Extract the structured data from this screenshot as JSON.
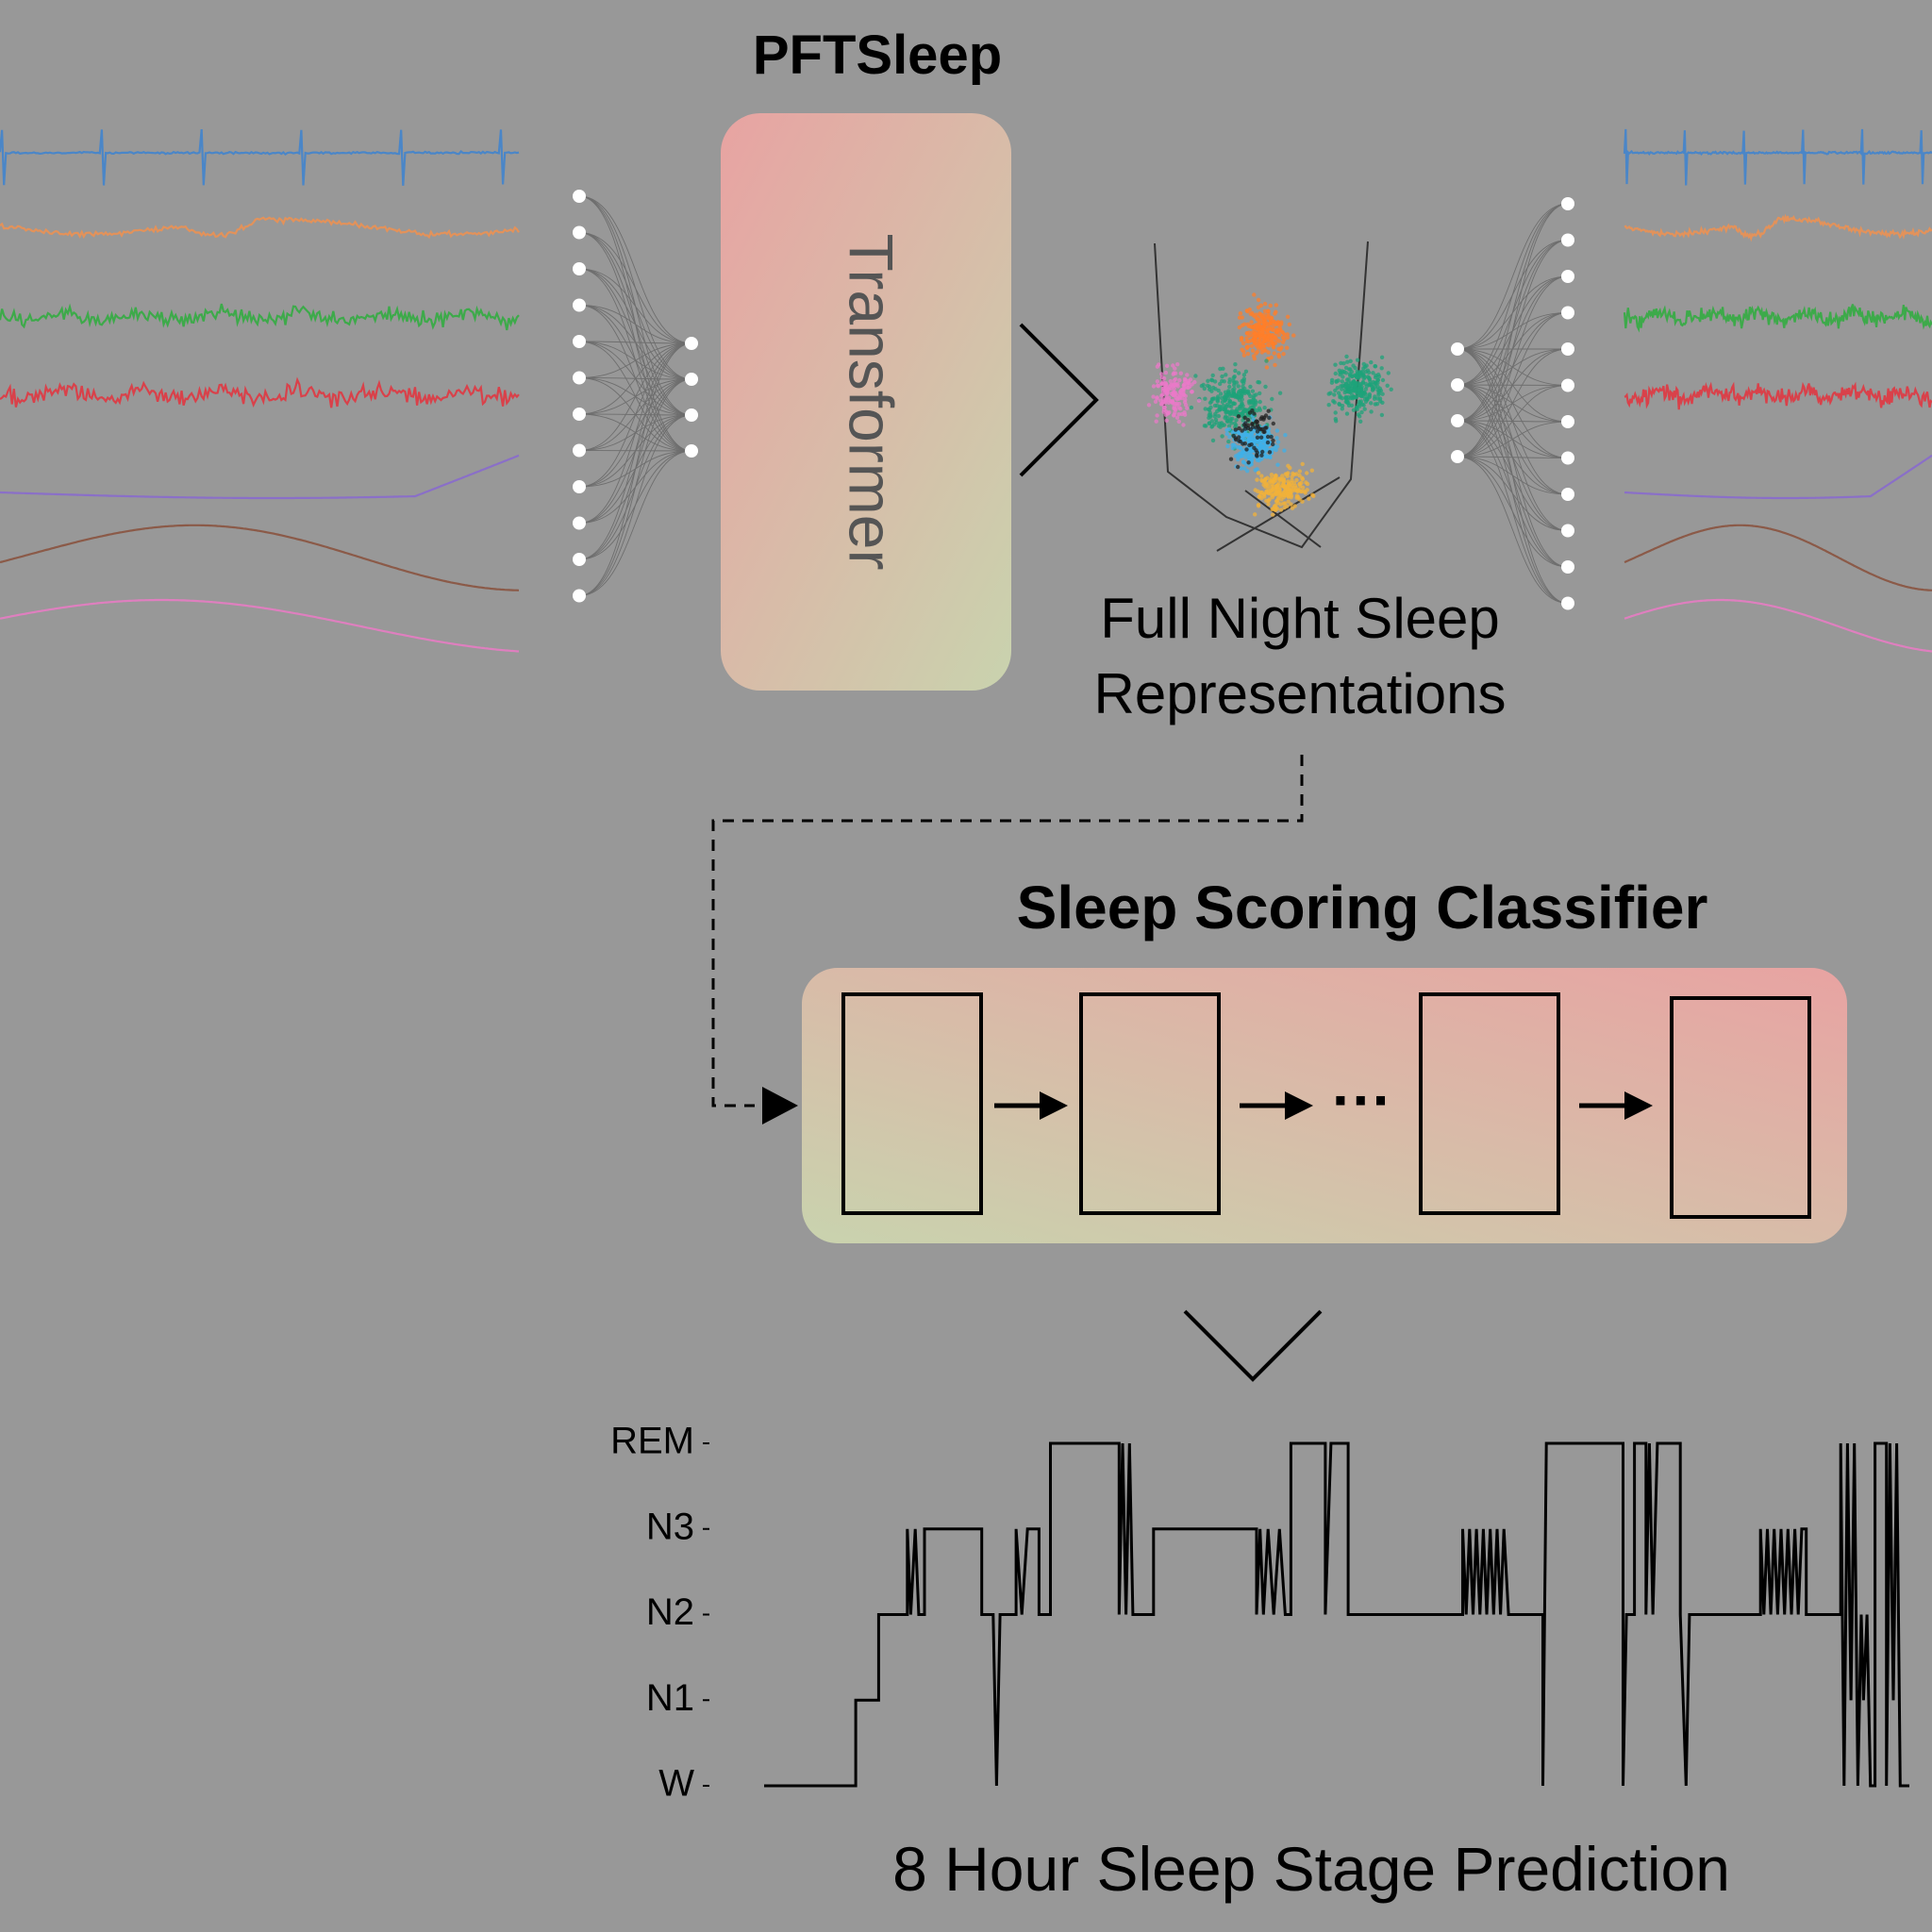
{
  "colors": {
    "background": "#989898",
    "gradient_red": "#e8a3a2",
    "gradient_green": "#c9d3ae",
    "signal_blue": "#4a86c8",
    "signal_orange": "#e3925a",
    "signal_green": "#3daa4a",
    "signal_red": "#d9414a",
    "signal_purple": "#8a6fc8",
    "signal_brown": "#8b5a48",
    "signal_pink": "#df7fbf",
    "cluster_orange": "#ff7f2a",
    "cluster_teal": "#1ea37a",
    "cluster_blue": "#3fb0e8",
    "cluster_yellow": "#f1b23a",
    "cluster_pink": "#e97ac8"
  },
  "encoder": {
    "title": "PFTSleep",
    "block_label": "Transformer"
  },
  "representations": {
    "caption_line1": "Full Night Sleep",
    "caption_line2": "Representations"
  },
  "classifier": {
    "title": "Sleep Scoring Classifier",
    "ellipsis": "···"
  },
  "prediction": {
    "caption": "8 Hour Sleep Stage Prediction"
  },
  "chart_data": {
    "type": "line",
    "categories": [
      "W",
      "N1",
      "N2",
      "N3",
      "REM"
    ],
    "xlim": [
      0,
      100
    ],
    "ylim": [
      0,
      4
    ],
    "hypnogram": [
      [
        0,
        0
      ],
      [
        8,
        0
      ],
      [
        8,
        1
      ],
      [
        10,
        1
      ],
      [
        10,
        2
      ],
      [
        12.5,
        2
      ],
      [
        12.5,
        3
      ],
      [
        12.8,
        2
      ],
      [
        13.2,
        3
      ],
      [
        13.5,
        2
      ],
      [
        14,
        2
      ],
      [
        14,
        3
      ],
      [
        19,
        3
      ],
      [
        19,
        2
      ],
      [
        20,
        2
      ],
      [
        20.3,
        0
      ],
      [
        20.6,
        2
      ],
      [
        22,
        2
      ],
      [
        22,
        3
      ],
      [
        22.5,
        2
      ],
      [
        23,
        3
      ],
      [
        24,
        3
      ],
      [
        24,
        2
      ],
      [
        25,
        2
      ],
      [
        25,
        4
      ],
      [
        31,
        4
      ],
      [
        31,
        2
      ],
      [
        31.3,
        4
      ],
      [
        31.6,
        2
      ],
      [
        31.9,
        4
      ],
      [
        32.2,
        2
      ],
      [
        34,
        2
      ],
      [
        34,
        3
      ],
      [
        43,
        3
      ],
      [
        43,
        2
      ],
      [
        43.3,
        3
      ],
      [
        43.6,
        2
      ],
      [
        44,
        3
      ],
      [
        44.5,
        2
      ],
      [
        45,
        3
      ],
      [
        45.5,
        2
      ],
      [
        46,
        2
      ],
      [
        46,
        4
      ],
      [
        49,
        4
      ],
      [
        49,
        2
      ],
      [
        49.5,
        4
      ],
      [
        51,
        4
      ],
      [
        51,
        2
      ],
      [
        61,
        2
      ],
      [
        61,
        3
      ],
      [
        61.3,
        2
      ],
      [
        61.6,
        3
      ],
      [
        61.9,
        2
      ],
      [
        62.2,
        3
      ],
      [
        62.5,
        2
      ],
      [
        62.8,
        3
      ],
      [
        63.1,
        2
      ],
      [
        63.4,
        3
      ],
      [
        63.7,
        2
      ],
      [
        64,
        3
      ],
      [
        64.3,
        2
      ],
      [
        64.6,
        3
      ],
      [
        65,
        2
      ],
      [
        68,
        2
      ],
      [
        68,
        0
      ],
      [
        68.3,
        4
      ],
      [
        75,
        4
      ],
      [
        75,
        0
      ],
      [
        75.3,
        2
      ],
      [
        76,
        2
      ],
      [
        76,
        4
      ],
      [
        77,
        4
      ],
      [
        77,
        2
      ],
      [
        77.3,
        4
      ],
      [
        77.6,
        2
      ],
      [
        78,
        4
      ],
      [
        80,
        4
      ],
      [
        80,
        2
      ],
      [
        80.5,
        0
      ],
      [
        80.8,
        2
      ],
      [
        87,
        2
      ],
      [
        87,
        3
      ],
      [
        87.3,
        2
      ],
      [
        87.6,
        3
      ],
      [
        87.9,
        2
      ],
      [
        88.2,
        3
      ],
      [
        88.5,
        2
      ],
      [
        88.8,
        3
      ],
      [
        89.1,
        2
      ],
      [
        89.4,
        3
      ],
      [
        89.7,
        2
      ],
      [
        90,
        3
      ],
      [
        90.3,
        2
      ],
      [
        90.6,
        3
      ],
      [
        91,
        3
      ],
      [
        91,
        2
      ],
      [
        94,
        2
      ],
      [
        94,
        4
      ],
      [
        94.3,
        0
      ],
      [
        94.6,
        4
      ],
      [
        94.9,
        1
      ],
      [
        95.2,
        4
      ],
      [
        95.5,
        0
      ],
      [
        95.8,
        2
      ],
      [
        96,
        1
      ],
      [
        96.3,
        2
      ],
      [
        96.6,
        0
      ],
      [
        97,
        0
      ],
      [
        97,
        4
      ],
      [
        98,
        4
      ],
      [
        98,
        0
      ],
      [
        98.3,
        4
      ],
      [
        98.6,
        1
      ],
      [
        98.9,
        4
      ],
      [
        99.2,
        0
      ],
      [
        100,
        0
      ]
    ]
  }
}
